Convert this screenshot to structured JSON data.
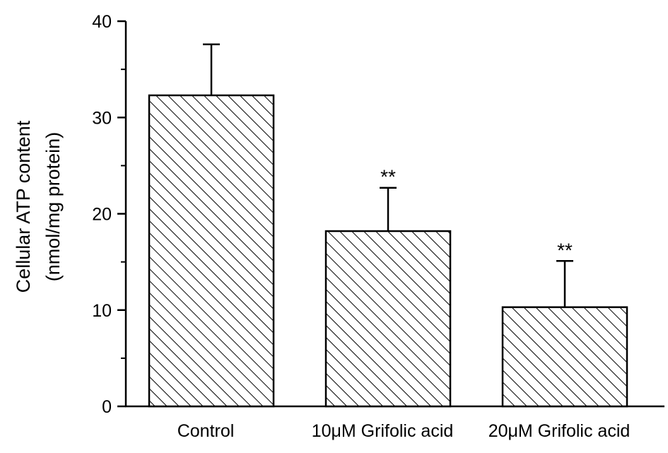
{
  "chart_data": {
    "type": "bar",
    "title": "",
    "xlabel": "",
    "ylabel": [
      "Cellular ATP content",
      "(nmol/mg protein)"
    ],
    "ylim": [
      0,
      40
    ],
    "yticks": [
      0,
      10,
      20,
      30,
      40
    ],
    "categories": [
      "Control",
      "10μM Grifolic acid",
      "20μM Grifolic acid"
    ],
    "values": [
      32.3,
      18.2,
      10.3
    ],
    "error": [
      5.3,
      4.5,
      4.8
    ],
    "annotations": [
      "",
      "**",
      "**"
    ],
    "pattern": "diagonal-hatch",
    "colors": {
      "bar_fill": "#ffffff",
      "hatch": "#000000",
      "axis": "#000000"
    },
    "grid": false,
    "legend": "none"
  }
}
